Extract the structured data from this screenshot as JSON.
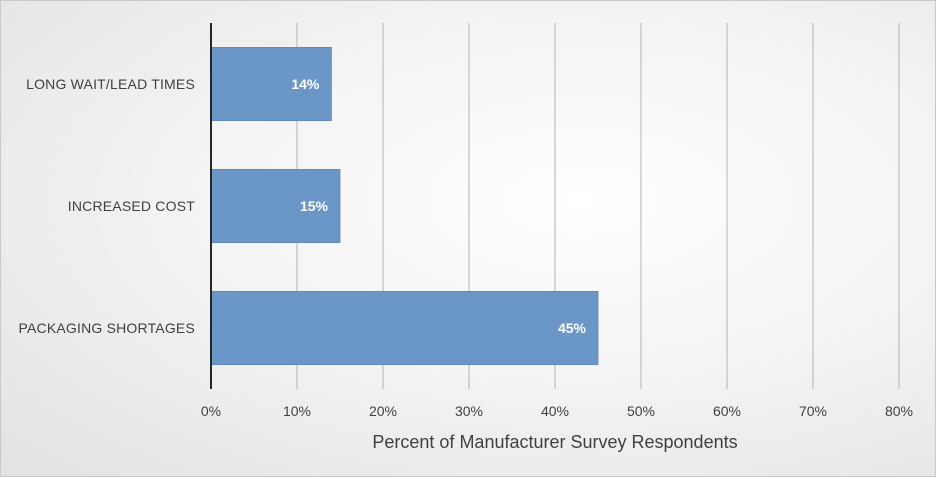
{
  "chart_data": {
    "type": "bar",
    "orientation": "horizontal",
    "categories": [
      "LONG WAIT/LEAD TIMES",
      "INCREASED COST",
      "PACKAGING SHORTAGES"
    ],
    "values": [
      14,
      15,
      45
    ],
    "data_labels": [
      "14%",
      "15%",
      "45%"
    ],
    "title": "",
    "xlabel": "Percent of Manufacturer Survey Respondents",
    "ylabel": "",
    "xlim": [
      0,
      80
    ],
    "ticks": [
      0,
      10,
      20,
      30,
      40,
      50,
      60,
      70,
      80
    ],
    "tick_labels": [
      "0%",
      "10%",
      "20%",
      "30%",
      "40%",
      "50%",
      "60%",
      "70%",
      "80%"
    ],
    "grid": true,
    "bar_color": "#6a96c8",
    "bar_edge_color": "#5b87ba",
    "grid_color": "#b4b4b4",
    "axis_color": "#262626"
  }
}
